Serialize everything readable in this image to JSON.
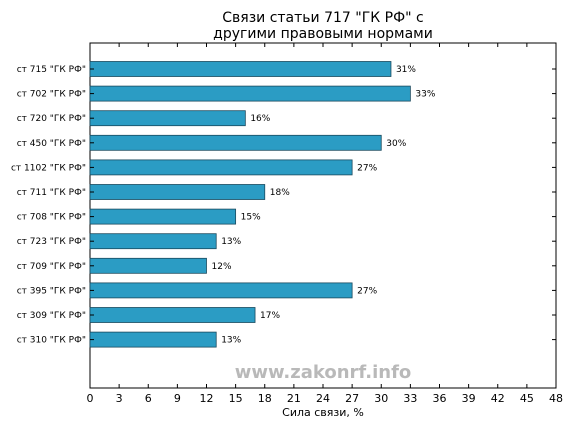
{
  "chart_data": {
    "type": "bar",
    "orientation": "horizontal",
    "title": "Связи статьи 717 \"ГК РФ\" с\nдругими правовыми нормами",
    "xlabel": "Сила связи, %",
    "ylabel": "",
    "xlim": [
      0,
      48
    ],
    "xticks": [
      0,
      3,
      6,
      9,
      12,
      15,
      18,
      21,
      24,
      27,
      30,
      33,
      36,
      39,
      42,
      45,
      48
    ],
    "categories": [
      "ст 715 \"ГК РФ\"",
      "ст 702 \"ГК РФ\"",
      "ст 720 \"ГК РФ\"",
      "ст 450 \"ГК РФ\"",
      "ст 1102 \"ГК РФ\"",
      "ст 711 \"ГК РФ\"",
      "ст 708 \"ГК РФ\"",
      "ст 723 \"ГК РФ\"",
      "ст 709 \"ГК РФ\"",
      "ст 395 \"ГК РФ\"",
      "ст 309 \"ГК РФ\"",
      "ст 310 \"ГК РФ\""
    ],
    "values": [
      31,
      33,
      16,
      30,
      27,
      18,
      15,
      13,
      12,
      27,
      17,
      13
    ],
    "value_labels": [
      "31%",
      "33%",
      "16%",
      "30%",
      "27%",
      "18%",
      "15%",
      "13%",
      "12%",
      "27%",
      "17%",
      "13%"
    ],
    "grid": false,
    "bar_color": "#2b9cc4",
    "bar_edge_color": "#1a4a5e"
  },
  "watermark": "www.zakonrf.info"
}
